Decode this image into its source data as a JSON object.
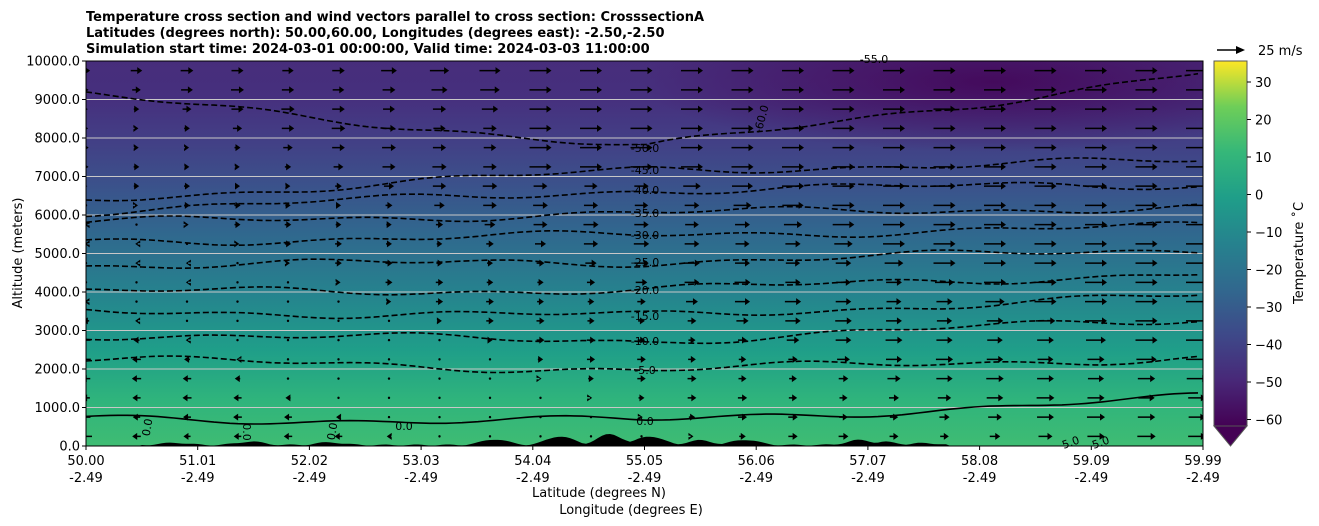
{
  "chart_data": {
    "type": "contour",
    "title_lines": [
      "Temperature cross section and wind vectors parallel to cross section: CrosssectionA",
      "Latitudes (degrees north): 50.00,60.00, Longitudes (degrees east): -2.50,-2.50",
      "Simulation start time: 2024-03-01 00:00:00, Valid time: 2024-03-03 11:00:00"
    ],
    "ylabel": "Altitude (meters)",
    "xlabel_lines": [
      "Latitude (degrees N)",
      "Longitude (degrees E)"
    ],
    "ylim": [
      0,
      10000
    ],
    "xlim": [
      50.0,
      59.99
    ],
    "yticks": [
      "0.0",
      "1000.0",
      "2000.0",
      "3000.0",
      "4000.0",
      "5000.0",
      "6000.0",
      "7000.0",
      "8000.0",
      "9000.0",
      "10000.0"
    ],
    "xticks": [
      {
        "lat": "50.00",
        "lon": "-2.49"
      },
      {
        "lat": "51.01",
        "lon": "-2.49"
      },
      {
        "lat": "52.02",
        "lon": "-2.49"
      },
      {
        "lat": "53.03",
        "lon": "-2.49"
      },
      {
        "lat": "54.04",
        "lon": "-2.49"
      },
      {
        "lat": "55.05",
        "lon": "-2.49"
      },
      {
        "lat": "56.06",
        "lon": "-2.49"
      },
      {
        "lat": "57.07",
        "lon": "-2.49"
      },
      {
        "lat": "58.08",
        "lon": "-2.49"
      },
      {
        "lat": "59.09",
        "lon": "-2.49"
      },
      {
        "lat": "59.99",
        "lon": "-2.49"
      }
    ],
    "colorbar": {
      "label": "Temperature $^\\circ$C",
      "label_display": "Temperature ˚C",
      "range": [
        -65,
        35
      ],
      "ticks": [
        "30",
        "20",
        "10",
        "0",
        "−10",
        "−20",
        "−30",
        "−40",
        "−50",
        "−60"
      ],
      "colormap": "viridis",
      "extend": "min"
    },
    "quiver_key": "25 m/s",
    "contours": [
      {
        "level": "-50.0",
        "alt_left": 9100,
        "alt_mid": 7740,
        "alt_right": 9700
      },
      {
        "level": "-45.0",
        "alt_left": 6400,
        "alt_mid": 7170,
        "alt_right": 7400
      },
      {
        "level": "-40.0",
        "alt_left": 6100,
        "alt_mid": 6650,
        "alt_right": 6800
      },
      {
        "level": "-35.0",
        "alt_left": 5800,
        "alt_mid": 6050,
        "alt_right": 6200
      },
      {
        "level": "-30.0",
        "alt_left": 5300,
        "alt_mid": 5480,
        "alt_right": 5700
      },
      {
        "level": "-25.0",
        "alt_left": 4700,
        "alt_mid": 4780,
        "alt_right": 5100
      },
      {
        "level": "-20.0",
        "alt_left": 4000,
        "alt_mid": 4050,
        "alt_right": 4500
      },
      {
        "level": "-15.0",
        "alt_left": 3500,
        "alt_mid": 3380,
        "alt_right": 3900
      },
      {
        "level": "-10.0",
        "alt_left": 2900,
        "alt_mid": 2730,
        "alt_right": 3300
      },
      {
        "level": "-5.0",
        "alt_left": 2250,
        "alt_mid": 1970,
        "alt_right": 2300
      },
      {
        "level": "0.0",
        "alt_left": 700,
        "alt_mid": 650,
        "alt_right": 1250
      }
    ],
    "extra_labels": [
      "-55.0",
      "-60.0",
      "5.0",
      "5.0",
      "0.0",
      "0.0",
      "0.0",
      "0.0"
    ],
    "temperature_surface_c": 12,
    "temperature_top_c": -55
  }
}
